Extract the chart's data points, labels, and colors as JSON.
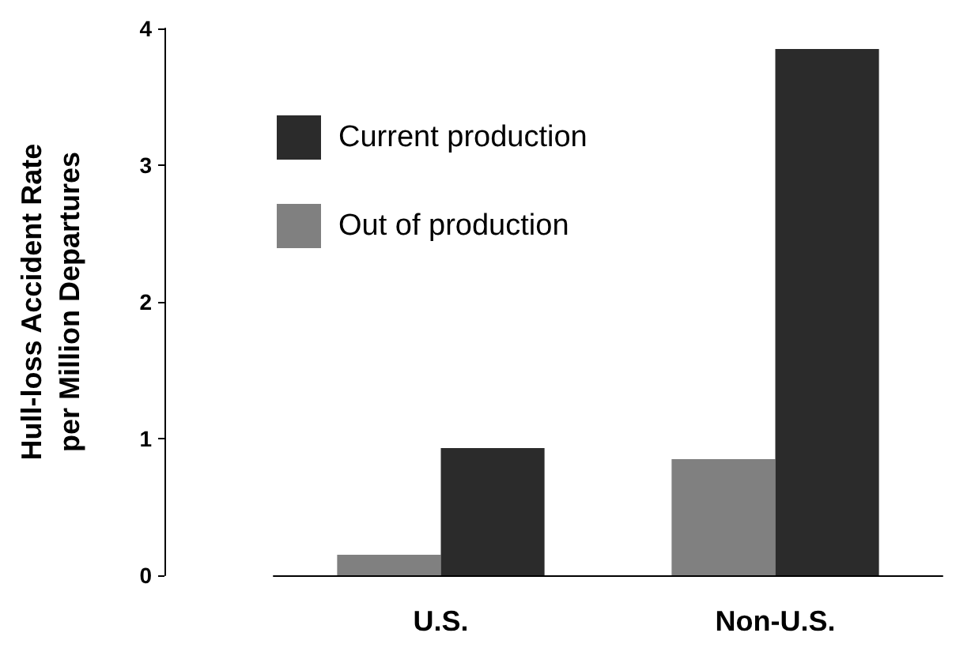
{
  "chart_data": {
    "type": "bar",
    "ylabel": "Hull-loss Accident Rate\nper Million Departures",
    "categories": [
      "U.S.",
      "Non-U.S."
    ],
    "series": [
      {
        "name": "Out of production",
        "color": "#808080",
        "values": [
          0.15,
          0.85
        ]
      },
      {
        "name": "Current production",
        "color": "#2b2b2b",
        "values": [
          0.93,
          3.85
        ]
      }
    ],
    "ylim": [
      0,
      4
    ],
    "yticks": [
      0,
      1,
      2,
      3,
      4
    ],
    "grid": false,
    "legend": "top left"
  }
}
